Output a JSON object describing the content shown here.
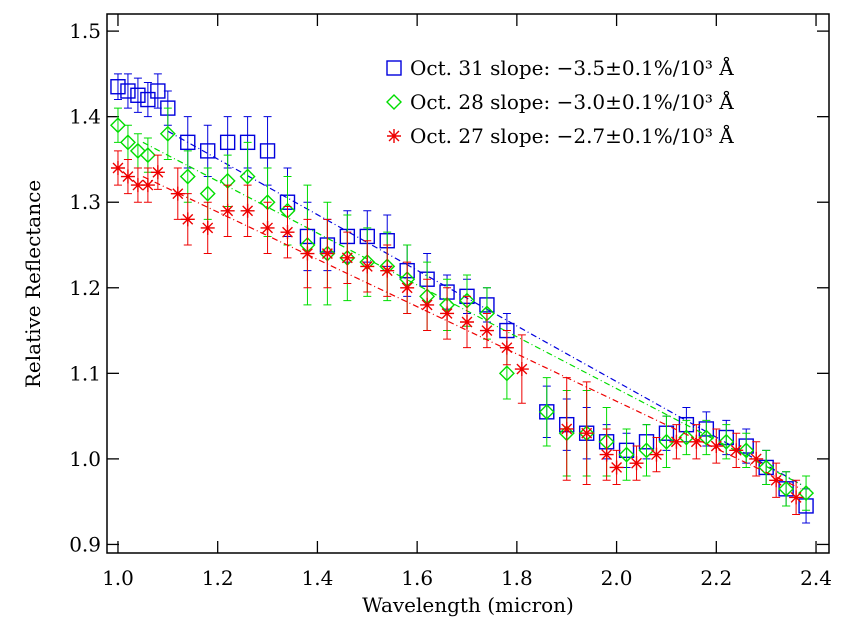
{
  "chart_data": {
    "type": "scatter",
    "x_label": "Wavelength (micron)",
    "y_label": "Relative Reflectance",
    "xlim": [
      0.978,
      2.426
    ],
    "ylim": [
      0.89,
      1.52
    ],
    "xticks": [
      {
        "value": 1.0,
        "label": "1.0"
      },
      1.2,
      1.4,
      1.6,
      1.8,
      {
        "value": 2.0,
        "label": "2.0"
      },
      2.2,
      2.4
    ],
    "yticks": [
      0.9,
      {
        "value": 1.0,
        "label": "1.0"
      },
      1.1,
      1.2,
      1.3,
      1.4,
      1.5
    ],
    "legend": "top-right",
    "series": [
      {
        "name": "Oct. 31 slope: −3.5±0.1%/10³ Å",
        "color": "#0000dd",
        "marker": "square",
        "x": [
          1.0,
          1.02,
          1.04,
          1.06,
          1.08,
          1.1,
          1.14,
          1.18,
          1.22,
          1.26,
          1.3,
          1.34,
          1.38,
          1.42,
          1.46,
          1.5,
          1.54,
          1.58,
          1.62,
          1.66,
          1.7,
          1.74,
          1.78,
          1.86,
          1.9,
          1.94,
          1.98,
          2.02,
          2.06,
          2.1,
          2.14,
          2.18,
          2.22,
          2.26,
          2.3,
          2.34,
          2.38
        ],
        "values": [
          1.435,
          1.43,
          1.425,
          1.42,
          1.43,
          1.41,
          1.37,
          1.36,
          1.37,
          1.37,
          1.36,
          1.3,
          1.26,
          1.25,
          1.26,
          1.26,
          1.255,
          1.22,
          1.21,
          1.195,
          1.19,
          1.18,
          1.15,
          1.055,
          1.04,
          1.03,
          1.02,
          1.01,
          1.02,
          1.03,
          1.04,
          1.035,
          1.025,
          1.015,
          0.99,
          0.965,
          0.945
        ],
        "errors": [
          0.015,
          0.02,
          0.02,
          0.02,
          0.02,
          0.02,
          0.03,
          0.03,
          0.03,
          0.03,
          0.04,
          0.04,
          0.04,
          0.03,
          0.03,
          0.03,
          0.03,
          0.03,
          0.03,
          0.02,
          0.02,
          0.02,
          0.02,
          0.03,
          0.03,
          0.03,
          0.02,
          0.02,
          0.02,
          0.02,
          0.02,
          0.02,
          0.02,
          0.02,
          0.02,
          0.02,
          0.02
        ],
        "fit_x": [
          1.1,
          2.37
        ],
        "fit_y": [
          1.383,
          0.97
        ]
      },
      {
        "name": "Oct. 28 slope: −3.0±0.1%/10³ Å",
        "color": "#00dd00",
        "marker": "diamond",
        "x": [
          1.0,
          1.02,
          1.04,
          1.06,
          1.1,
          1.14,
          1.18,
          1.22,
          1.26,
          1.3,
          1.34,
          1.38,
          1.42,
          1.46,
          1.5,
          1.54,
          1.58,
          1.62,
          1.66,
          1.7,
          1.74,
          1.78,
          1.86,
          1.9,
          1.94,
          1.98,
          2.02,
          2.06,
          2.1,
          2.14,
          2.18,
          2.22,
          2.26,
          2.3,
          2.34,
          2.38
        ],
        "values": [
          1.39,
          1.37,
          1.36,
          1.355,
          1.38,
          1.33,
          1.31,
          1.325,
          1.33,
          1.3,
          1.29,
          1.25,
          1.24,
          1.235,
          1.23,
          1.225,
          1.21,
          1.19,
          1.18,
          1.185,
          1.17,
          1.1,
          1.055,
          1.03,
          1.03,
          1.02,
          1.005,
          1.01,
          1.02,
          1.025,
          1.025,
          1.02,
          1.01,
          0.99,
          0.965,
          0.96
        ],
        "errors": [
          0.02,
          0.02,
          0.02,
          0.02,
          0.03,
          0.03,
          0.03,
          0.03,
          0.04,
          0.04,
          0.04,
          0.07,
          0.06,
          0.05,
          0.04,
          0.04,
          0.04,
          0.04,
          0.03,
          0.03,
          0.03,
          0.03,
          0.04,
          0.05,
          0.05,
          0.04,
          0.03,
          0.03,
          0.03,
          0.02,
          0.02,
          0.02,
          0.02,
          0.02,
          0.02,
          0.02
        ],
        "fit_x": [
          1.05,
          2.37
        ],
        "fit_y": [
          1.37,
          0.97
        ]
      },
      {
        "name": "Oct. 27 slope: −2.7±0.1%/10³ Å",
        "color": "#ee0000",
        "marker": "asterisk",
        "x": [
          1.0,
          1.02,
          1.04,
          1.06,
          1.08,
          1.12,
          1.14,
          1.18,
          1.22,
          1.26,
          1.3,
          1.34,
          1.38,
          1.42,
          1.46,
          1.5,
          1.54,
          1.58,
          1.62,
          1.66,
          1.7,
          1.74,
          1.78,
          1.81,
          1.9,
          1.94,
          1.98,
          2.0,
          2.04,
          2.08,
          2.12,
          2.16,
          2.2,
          2.24,
          2.28,
          2.32,
          2.36
        ],
        "values": [
          1.34,
          1.33,
          1.32,
          1.32,
          1.335,
          1.31,
          1.28,
          1.27,
          1.29,
          1.29,
          1.27,
          1.265,
          1.24,
          1.24,
          1.235,
          1.225,
          1.22,
          1.2,
          1.18,
          1.17,
          1.16,
          1.15,
          1.13,
          1.105,
          1.035,
          1.03,
          1.005,
          0.99,
          0.995,
          1.005,
          1.02,
          1.02,
          1.015,
          1.01,
          1.0,
          0.975,
          0.955
        ],
        "errors": [
          0.02,
          0.02,
          0.02,
          0.02,
          0.02,
          0.03,
          0.03,
          0.03,
          0.03,
          0.03,
          0.03,
          0.03,
          0.04,
          0.04,
          0.03,
          0.03,
          0.03,
          0.03,
          0.03,
          0.03,
          0.03,
          0.02,
          0.02,
          0.04,
          0.06,
          0.06,
          0.03,
          0.02,
          0.02,
          0.02,
          0.02,
          0.02,
          0.02,
          0.02,
          0.02,
          0.02,
          0.02
        ],
        "fit_x": [
          1.05,
          2.37
        ],
        "fit_y": [
          1.33,
          0.965
        ]
      }
    ]
  }
}
